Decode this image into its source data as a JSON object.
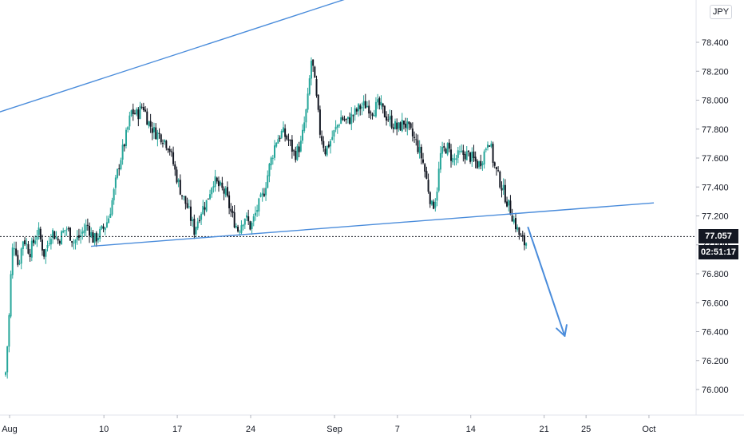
{
  "currency_label": "JPY",
  "last_price_label": "77.057",
  "countdown_label": "02:51:17",
  "colors": {
    "up": "#26a69a",
    "down": "#131722",
    "trendline": "#4a8cdb",
    "arrow": "#4a8cdb",
    "price_line": "#131722"
  },
  "chart_data": {
    "type": "candlestick",
    "timeframe": "4h",
    "ylim": [
      75.85,
      78.62
    ],
    "y_ticks": [
      "76.000",
      "76.200",
      "76.400",
      "76.600",
      "76.800",
      "77.000",
      "77.200",
      "77.400",
      "77.600",
      "77.800",
      "78.000",
      "78.200",
      "78.400"
    ],
    "x_ticks": [
      {
        "label": "Aug",
        "day": 0
      },
      {
        "label": "10",
        "day": 9
      },
      {
        "label": "17",
        "day": 16
      },
      {
        "label": "24",
        "day": 23
      },
      {
        "label": "Sep",
        "day": 31
      },
      {
        "label": "7",
        "day": 37
      },
      {
        "label": "14",
        "day": 44
      },
      {
        "label": "21",
        "day": 51
      },
      {
        "label": "25",
        "day": 55
      },
      {
        "label": "Oct",
        "day": 61
      }
    ],
    "last_price": 77.057,
    "current_day": 49.8,
    "close_anchors": [
      [
        0.0,
        76.12
      ],
      [
        0.3,
        76.45
      ],
      [
        0.6,
        76.95
      ],
      [
        0.9,
        77.02
      ],
      [
        1.2,
        76.85
      ],
      [
        1.7,
        77.05
      ],
      [
        2.3,
        76.95
      ],
      [
        3.1,
        77.1
      ],
      [
        3.7,
        76.93
      ],
      [
        4.4,
        77.1
      ],
      [
        5.0,
        77.03
      ],
      [
        5.8,
        77.12
      ],
      [
        6.5,
        77.02
      ],
      [
        7.1,
        77.06
      ],
      [
        7.8,
        77.14
      ],
      [
        8.4,
        77.03
      ],
      [
        9.0,
        77.08
      ],
      [
        9.4,
        77.12
      ],
      [
        9.8,
        77.18
      ],
      [
        10.3,
        77.35
      ],
      [
        10.8,
        77.55
      ],
      [
        11.4,
        77.72
      ],
      [
        12.0,
        77.92
      ],
      [
        12.6,
        77.9
      ],
      [
        13.1,
        77.97
      ],
      [
        13.6,
        77.85
      ],
      [
        14.2,
        77.78
      ],
      [
        14.9,
        77.75
      ],
      [
        15.6,
        77.68
      ],
      [
        16.2,
        77.5
      ],
      [
        16.8,
        77.35
      ],
      [
        17.4,
        77.25
      ],
      [
        18.0,
        77.1
      ],
      [
        18.6,
        77.23
      ],
      [
        19.2,
        77.3
      ],
      [
        19.8,
        77.45
      ],
      [
        20.4,
        77.4
      ],
      [
        21.0,
        77.35
      ],
      [
        21.6,
        77.2
      ],
      [
        22.2,
        77.1
      ],
      [
        22.8,
        77.2
      ],
      [
        23.4,
        77.12
      ],
      [
        24.0,
        77.25
      ],
      [
        24.6,
        77.35
      ],
      [
        25.2,
        77.55
      ],
      [
        25.8,
        77.72
      ],
      [
        26.4,
        77.78
      ],
      [
        27.0,
        77.72
      ],
      [
        27.6,
        77.62
      ],
      [
        28.2,
        77.7
      ],
      [
        28.8,
        77.98
      ],
      [
        29.2,
        78.3
      ],
      [
        29.6,
        78.05
      ],
      [
        30.0,
        77.78
      ],
      [
        30.5,
        77.65
      ],
      [
        31.0,
        77.72
      ],
      [
        31.5,
        77.8
      ],
      [
        32.0,
        77.88
      ],
      [
        32.6,
        77.85
      ],
      [
        33.2,
        77.9
      ],
      [
        33.8,
        77.95
      ],
      [
        34.4,
        77.97
      ],
      [
        35.0,
        77.93
      ],
      [
        35.6,
        77.97
      ],
      [
        36.2,
        77.9
      ],
      [
        36.8,
        77.85
      ],
      [
        37.4,
        77.8
      ],
      [
        38.0,
        77.85
      ],
      [
        38.6,
        77.78
      ],
      [
        39.2,
        77.7
      ],
      [
        39.8,
        77.58
      ],
      [
        40.3,
        77.4
      ],
      [
        40.7,
        77.25
      ],
      [
        41.1,
        77.35
      ],
      [
        41.5,
        77.62
      ],
      [
        42.1,
        77.68
      ],
      [
        42.7,
        77.58
      ],
      [
        43.3,
        77.62
      ],
      [
        43.9,
        77.63
      ],
      [
        44.5,
        77.6
      ],
      [
        45.1,
        77.55
      ],
      [
        45.6,
        77.62
      ],
      [
        46.1,
        77.75
      ],
      [
        46.6,
        77.55
      ],
      [
        47.1,
        77.45
      ],
      [
        47.6,
        77.35
      ],
      [
        48.1,
        77.25
      ],
      [
        48.6,
        77.15
      ],
      [
        49.1,
        77.05
      ],
      [
        49.6,
        77.0
      ],
      [
        49.8,
        77.057
      ]
    ],
    "trendlines": [
      {
        "name": "upper-resistance",
        "points": [
          [
            -10.5,
            77.68
          ],
          [
            37.3,
            78.81
          ]
        ]
      },
      {
        "name": "lower-support",
        "points": [
          [
            8.3,
            76.99
          ],
          [
            62.0,
            77.29
          ]
        ]
      }
    ],
    "projection_arrow": {
      "from": [
        50.0,
        77.12
      ],
      "to": [
        53.5,
        76.37
      ]
    }
  }
}
